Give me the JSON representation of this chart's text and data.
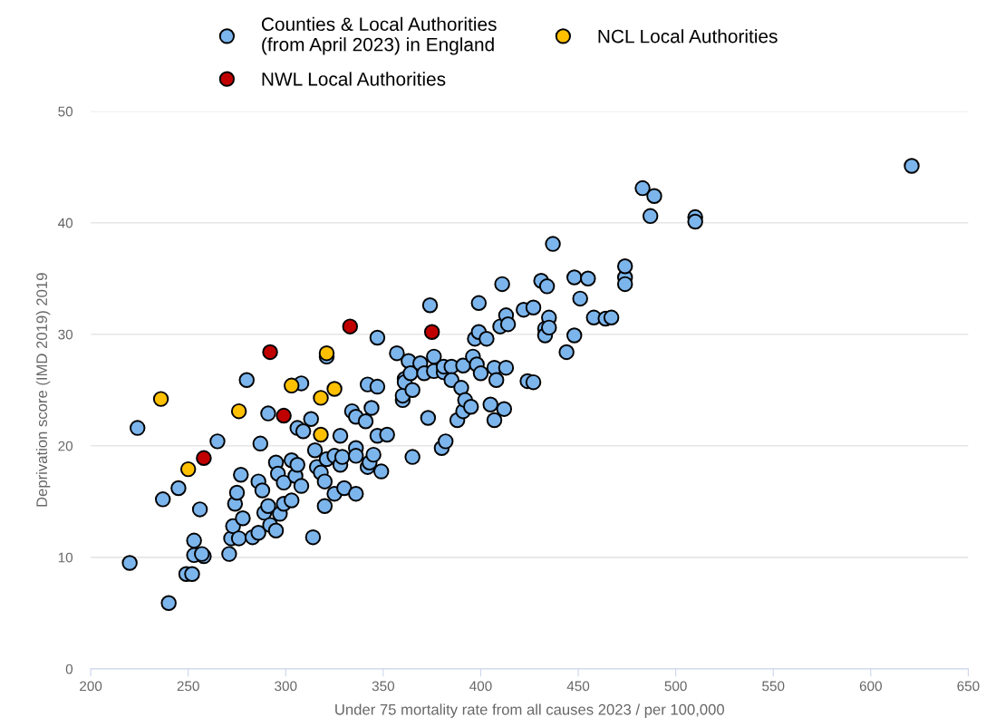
{
  "chart_data": {
    "type": "scatter",
    "xlabel": "Under 75 mortality rate from all causes 2023 / per 100,000",
    "ylabel": "Deprivation score (IMD 2019) 2019",
    "xlim": [
      200,
      650
    ],
    "xticks": [
      200,
      250,
      300,
      350,
      400,
      450,
      500,
      550,
      600,
      650
    ],
    "ylim": [
      0,
      50
    ],
    "yticks": [
      0,
      10,
      20,
      30,
      40,
      50
    ],
    "grid": "y",
    "legend": "top",
    "marker": "circle",
    "series": [
      {
        "name": "Counties & Local Authorities\n(from April 2023) in England",
        "color": "#7cb5ec",
        "x": [
          220,
          224,
          237,
          240,
          245,
          249,
          252,
          253,
          253,
          258,
          257,
          256,
          265,
          271,
          272,
          273,
          274,
          275,
          276,
          277,
          278,
          280,
          283,
          286,
          286,
          287,
          288,
          289,
          291,
          291,
          292,
          295,
          295,
          296,
          297,
          299,
          299,
          303,
          303,
          305,
          306,
          306,
          308,
          308,
          309,
          313,
          314,
          315,
          316,
          318,
          320,
          320,
          321,
          321,
          325,
          325,
          328,
          328,
          329,
          330,
          334,
          336,
          336,
          336,
          336,
          341,
          342,
          342,
          343,
          344,
          345,
          347,
          347,
          347,
          349,
          352,
          357,
          360,
          360,
          361,
          361,
          363,
          364,
          365,
          365,
          369,
          371,
          373,
          374,
          376,
          376,
          380,
          381,
          381,
          382,
          385,
          385,
          388,
          390,
          391,
          391,
          392,
          395,
          396,
          397,
          398,
          399,
          399,
          400,
          403,
          405,
          407,
          407,
          408,
          410,
          411,
          412,
          413,
          413,
          414,
          422,
          424,
          427,
          427,
          431,
          433,
          433,
          434,
          435,
          435,
          437,
          444,
          448,
          448,
          451,
          455,
          458,
          464,
          467,
          474,
          474,
          474,
          483,
          487,
          489,
          510,
          510,
          621
        ],
        "values": [
          9.5,
          21.6,
          15.2,
          5.9,
          16.2,
          8.5,
          8.5,
          11.5,
          10.2,
          10.1,
          10.3,
          14.3,
          20.4,
          10.3,
          11.7,
          12.8,
          14.8,
          15.8,
          11.7,
          17.4,
          13.5,
          25.9,
          11.8,
          16.8,
          12.2,
          20.2,
          16.0,
          14.0,
          22.9,
          14.6,
          12.9,
          18.5,
          12.4,
          17.5,
          13.9,
          14.8,
          16.7,
          15.1,
          18.7,
          17.3,
          21.6,
          18.3,
          25.6,
          16.4,
          21.3,
          22.4,
          11.8,
          19.6,
          18.1,
          17.6,
          16.8,
          14.6,
          18.8,
          28.0,
          15.7,
          19.1,
          18.3,
          20.9,
          19.0,
          16.2,
          23.1,
          19.8,
          19.1,
          15.7,
          22.6,
          22.2,
          18.1,
          25.5,
          18.5,
          23.4,
          19.2,
          25.3,
          20.9,
          29.7,
          17.7,
          21.0,
          28.3,
          24.1,
          24.5,
          26.0,
          25.7,
          27.6,
          26.5,
          25.0,
          19.0,
          27.4,
          26.5,
          22.5,
          32.6,
          26.7,
          28.0,
          19.8,
          26.6,
          27.1,
          20.4,
          27.1,
          25.9,
          22.3,
          25.2,
          23.1,
          27.2,
          24.1,
          23.5,
          28.0,
          29.6,
          27.3,
          32.8,
          30.2,
          26.5,
          29.6,
          23.7,
          22.3,
          27.0,
          25.9,
          30.7,
          34.5,
          23.3,
          27.0,
          31.7,
          30.9,
          32.2,
          25.8,
          32.4,
          25.7,
          34.8,
          30.5,
          29.9,
          34.3,
          31.5,
          30.6,
          38.1,
          28.4,
          29.9,
          35.1,
          33.2,
          35.0,
          31.5,
          31.4,
          31.5,
          35.1,
          34.5,
          36.1,
          43.1,
          40.6,
          42.4,
          40.5,
          40.1,
          45.1
        ]
      },
      {
        "name": "NWL Local Authorities",
        "color": "#c00000",
        "x": [
          292,
          333,
          375,
          299,
          258
        ],
        "values": [
          28.4,
          30.7,
          30.2,
          22.7,
          18.9
        ]
      },
      {
        "name": "NCL Local Authorities",
        "color": "#ffc000",
        "x": [
          236,
          276,
          250,
          321,
          303,
          318,
          325,
          318
        ],
        "values": [
          24.2,
          23.1,
          17.9,
          28.3,
          25.4,
          24.3,
          25.1,
          21.0
        ]
      }
    ]
  }
}
